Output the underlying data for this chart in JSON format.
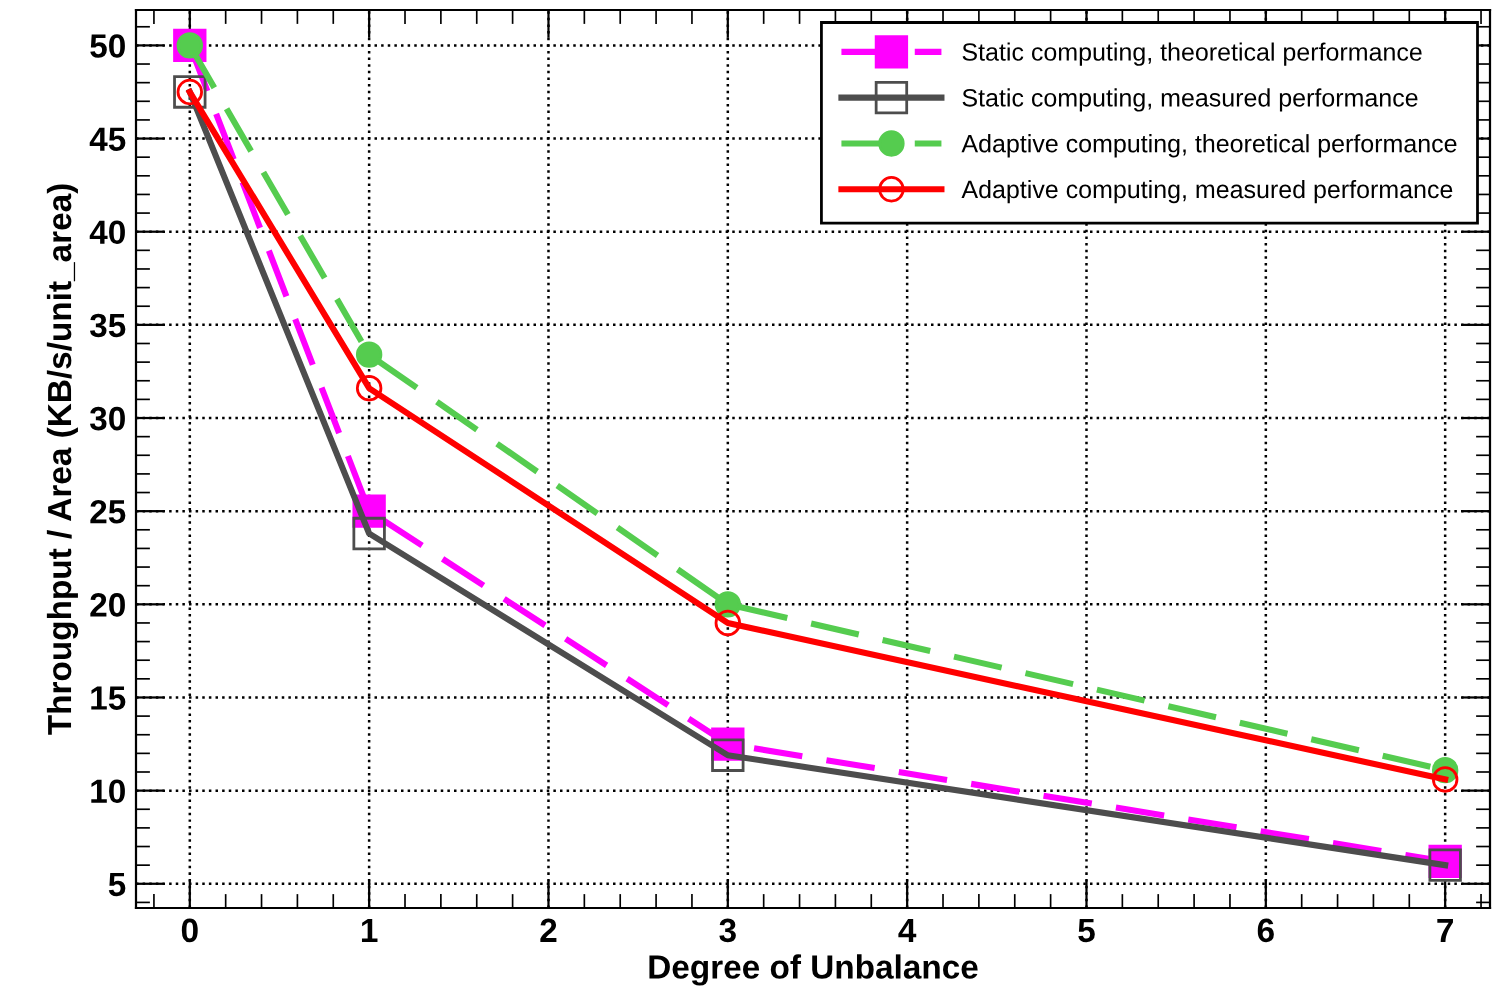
{
  "chart_data": {
    "type": "line",
    "xlabel": "Degree of Unbalance",
    "ylabel": "Throughput / Area (KB/s/unit_area)",
    "x": [
      0,
      1,
      3,
      7
    ],
    "series": [
      {
        "name": "Static computing, theoretical performance",
        "color": "#ff00ff",
        "values": [
          50,
          25,
          12.5,
          6.2
        ],
        "marker": "square",
        "line_style": "dashed"
      },
      {
        "name": "Static computing, measured performance",
        "color": "#4d4d4d",
        "values": [
          47.5,
          23.8,
          11.9,
          6.0
        ],
        "marker": "square",
        "line_style": "solid"
      },
      {
        "name": "Adaptive computing, theoretical performance",
        "color": "#55cc4f",
        "values": [
          50,
          33.4,
          20,
          11.1
        ],
        "marker": "circle",
        "line_style": "dashed"
      },
      {
        "name": "Adaptive computing, measured performance",
        "color": "#ff0000",
        "values": [
          47.5,
          31.6,
          19,
          10.6
        ],
        "marker": "circle",
        "line_style": "solid"
      }
    ],
    "xlim": [
      -0.3,
      7.25
    ],
    "ylim": [
      3.7,
      51.9
    ],
    "xticks": [
      0,
      1,
      2,
      3,
      4,
      5,
      6,
      7
    ],
    "yticks": [
      5,
      10,
      15,
      20,
      25,
      30,
      35,
      40,
      45,
      50
    ],
    "grid": true,
    "legend": "top right"
  }
}
